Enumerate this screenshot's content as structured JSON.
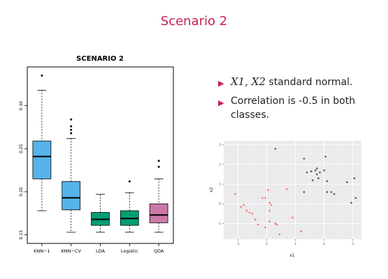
{
  "slide": {
    "title": "Scenario 2"
  },
  "bullets": [
    {
      "math": "X1, X2",
      "text": " standard normal."
    },
    {
      "math": "",
      "text": "Correlation is -0.5 in both classes."
    }
  ],
  "chart_data": [
    {
      "type": "box",
      "title": "SCENARIO 2",
      "xlabel": "",
      "ylabel": "",
      "ylim": [
        0.14,
        0.345
      ],
      "yticks": [
        0.15,
        0.2,
        0.25,
        0.3
      ],
      "yticklabels": [
        "0.15",
        "0.20",
        "0.25",
        "0.30"
      ],
      "categories": [
        "KNN−1",
        "KNN−CV",
        "LDA",
        "Logistic",
        "QDA"
      ],
      "colors": [
        "#56b4e9",
        "#56b4e9",
        "#009e73",
        "#009e73",
        "#cc79a7"
      ],
      "boxes": [
        {
          "label": "KNN−1",
          "whisker_low": 0.178,
          "q1": 0.215,
          "median": 0.241,
          "q3": 0.259,
          "whisker_high": 0.318,
          "outliers": [
            0.335
          ]
        },
        {
          "label": "KNN−CV",
          "whisker_low": 0.153,
          "q1": 0.179,
          "median": 0.193,
          "q3": 0.212,
          "whisker_high": 0.262,
          "outliers": [
            0.268,
            0.272,
            0.276,
            0.284
          ]
        },
        {
          "label": "LDA",
          "whisker_low": 0.153,
          "q1": 0.161,
          "median": 0.168,
          "q3": 0.176,
          "whisker_high": 0.197,
          "outliers": []
        },
        {
          "label": "Logistic",
          "whisker_low": 0.153,
          "q1": 0.161,
          "median": 0.169,
          "q3": 0.178,
          "whisker_high": 0.199,
          "outliers": [
            0.212
          ]
        },
        {
          "label": "QDA",
          "whisker_low": 0.153,
          "q1": 0.164,
          "median": 0.173,
          "q3": 0.186,
          "whisker_high": 0.215,
          "outliers": [
            0.229,
            0.236
          ]
        }
      ],
      "grid": false
    },
    {
      "type": "scatter",
      "title": "",
      "xlabel": "x1",
      "ylabel": "x2",
      "xlim": [
        -1.5,
        3.3
      ],
      "ylim": [
        -1.8,
        3.2
      ],
      "xticks": [
        -1,
        0,
        1,
        2,
        3
      ],
      "yticks": [
        -1,
        0,
        1,
        2,
        3
      ],
      "xticklabels": [
        "-1",
        "0",
        "1",
        "2",
        "3"
      ],
      "yticklabels": [
        "-1",
        "0",
        "1",
        "2",
        "3"
      ],
      "background": "#ebebeb",
      "grid": true,
      "series": [
        {
          "color": "#f8766d",
          "points": [
            [
              -1.1,
              0.5
            ],
            [
              -0.9,
              -0.15
            ],
            [
              -0.8,
              -0.05
            ],
            [
              -0.7,
              -0.35
            ],
            [
              -0.6,
              -0.45
            ],
            [
              -0.5,
              -0.5
            ],
            [
              -0.4,
              -0.8
            ],
            [
              -0.3,
              -1.05
            ],
            [
              -0.15,
              0.3
            ],
            [
              -0.05,
              0.3
            ],
            [
              0.05,
              0.7
            ],
            [
              0.1,
              -0.35
            ],
            [
              0.15,
              -0.05
            ],
            [
              0.1,
              0.05
            ],
            [
              -0.05,
              -1.2
            ],
            [
              0.1,
              -0.9
            ],
            [
              0.3,
              -1.0
            ],
            [
              0.35,
              -1.05
            ],
            [
              0.45,
              -1.55
            ],
            [
              0.9,
              -0.7
            ],
            [
              1.2,
              -1.4
            ],
            [
              0.7,
              0.75
            ]
          ]
        },
        {
          "color": "#555555",
          "points": [
            [
              0.3,
              2.8
            ],
            [
              1.3,
              2.3
            ],
            [
              1.3,
              0.6
            ],
            [
              1.4,
              1.6
            ],
            [
              1.55,
              1.65
            ],
            [
              1.6,
              1.2
            ],
            [
              1.7,
              1.7
            ],
            [
              1.75,
              1.5
            ],
            [
              1.75,
              1.8
            ],
            [
              1.8,
              1.3
            ],
            [
              1.85,
              1.6
            ],
            [
              2.0,
              1.7
            ],
            [
              2.05,
              2.4
            ],
            [
              2.1,
              0.6
            ],
            [
              2.25,
              0.6
            ],
            [
              2.35,
              0.5
            ],
            [
              2.8,
              1.1
            ],
            [
              2.95,
              0.05
            ],
            [
              3.05,
              1.3
            ],
            [
              3.1,
              0.3
            ],
            [
              2.1,
              1.15
            ]
          ]
        }
      ]
    }
  ]
}
